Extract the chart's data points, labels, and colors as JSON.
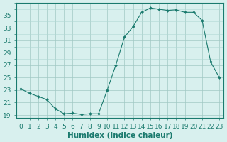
{
  "x": [
    0,
    1,
    2,
    3,
    4,
    5,
    6,
    7,
    8,
    9,
    10,
    11,
    12,
    13,
    14,
    15,
    16,
    17,
    18,
    19,
    20,
    21,
    22,
    23
  ],
  "y": [
    23.2,
    22.5,
    22.0,
    21.5,
    20.0,
    19.2,
    19.3,
    19.1,
    19.2,
    19.2,
    23.0,
    27.0,
    31.5,
    33.2,
    35.5,
    36.2,
    36.0,
    35.8,
    35.9,
    35.5,
    35.5,
    34.2,
    27.5,
    25.0
  ],
  "bg_color": "#d8f0ee",
  "line_color": "#1a7a6e",
  "grid_color": "#b0d8d4",
  "grid_color_major": "#a0c8c4",
  "xlabel": "Humidex (Indice chaleur)",
  "xlim": [
    -0.5,
    23.5
  ],
  "ylim": [
    18.5,
    37.0
  ],
  "yticks": [
    19,
    21,
    23,
    25,
    27,
    29,
    31,
    33,
    35
  ],
  "xticks": [
    0,
    1,
    2,
    3,
    4,
    5,
    6,
    7,
    8,
    9,
    10,
    11,
    12,
    13,
    14,
    15,
    16,
    17,
    18,
    19,
    20,
    21,
    22,
    23
  ],
  "tick_label_fontsize": 6.5,
  "xlabel_fontsize": 7.5
}
